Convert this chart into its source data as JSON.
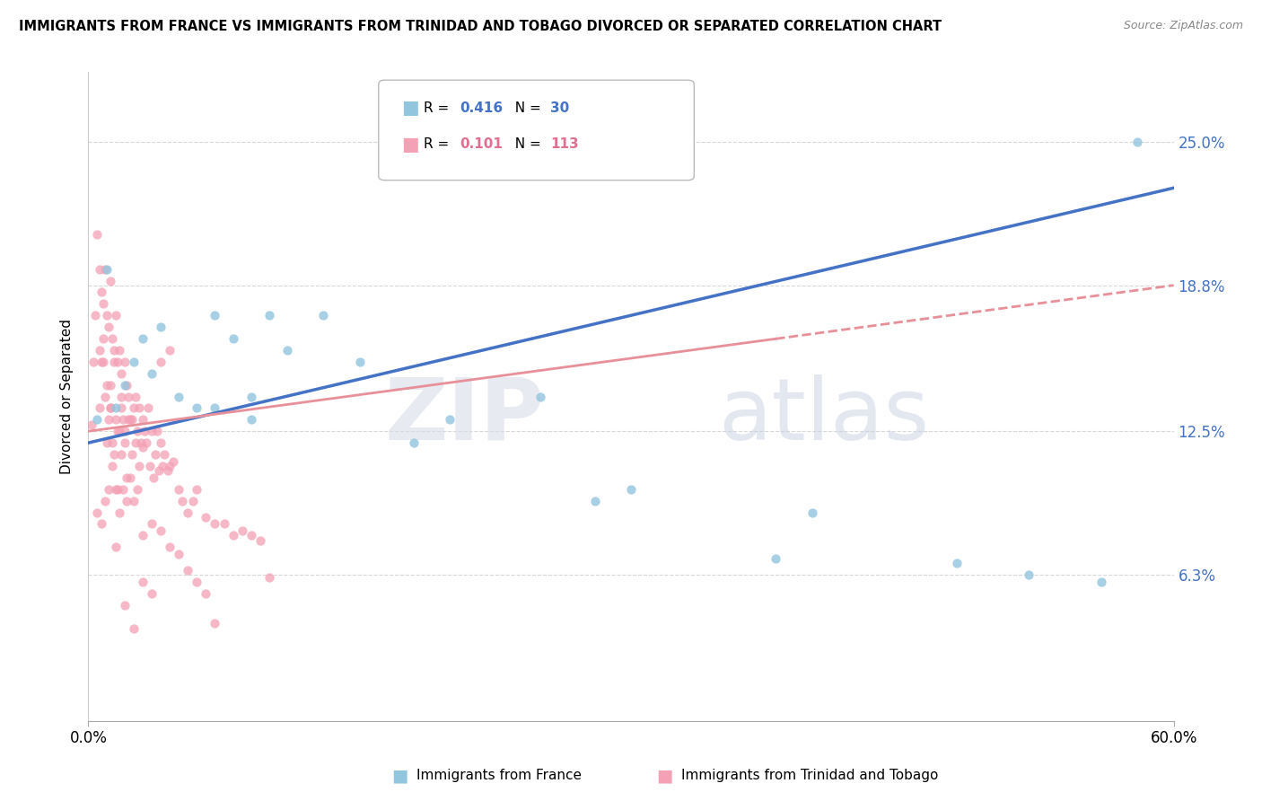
{
  "title": "IMMIGRANTS FROM FRANCE VS IMMIGRANTS FROM TRINIDAD AND TOBAGO DIVORCED OR SEPARATED CORRELATION CHART",
  "source": "Source: ZipAtlas.com",
  "ylabel": "Divorced or Separated",
  "ytick_labels": [
    "6.3%",
    "12.5%",
    "18.8%",
    "25.0%"
  ],
  "ytick_values": [
    0.063,
    0.125,
    0.188,
    0.25
  ],
  "xlim": [
    0.0,
    0.6
  ],
  "ylim": [
    0.0,
    0.28
  ],
  "legend_r1": "R = 0.416",
  "legend_n1": "N = 30",
  "legend_r2": "R = 0.101",
  "legend_n2": "N = 113",
  "color_france": "#92C5DE",
  "color_trinidad": "#F4A0B5",
  "color_trendline_france": "#4472C4",
  "color_trendline_trinidad": "#E8909A",
  "france_x": [
    0.005,
    0.01,
    0.015,
    0.02,
    0.025,
    0.03,
    0.035,
    0.04,
    0.05,
    0.06,
    0.07,
    0.08,
    0.09,
    0.1,
    0.11,
    0.13,
    0.15,
    0.2,
    0.25,
    0.28,
    0.3,
    0.38,
    0.4,
    0.48,
    0.52,
    0.56,
    0.58,
    0.07,
    0.09,
    0.18
  ],
  "france_y": [
    0.13,
    0.195,
    0.135,
    0.145,
    0.155,
    0.165,
    0.15,
    0.17,
    0.14,
    0.135,
    0.175,
    0.165,
    0.14,
    0.175,
    0.16,
    0.175,
    0.155,
    0.13,
    0.14,
    0.095,
    0.1,
    0.07,
    0.09,
    0.068,
    0.063,
    0.06,
    0.25,
    0.135,
    0.13,
    0.12
  ],
  "trinidad_x": [
    0.002,
    0.003,
    0.004,
    0.005,
    0.006,
    0.006,
    0.007,
    0.007,
    0.008,
    0.008,
    0.009,
    0.009,
    0.01,
    0.01,
    0.011,
    0.011,
    0.012,
    0.012,
    0.013,
    0.013,
    0.014,
    0.014,
    0.015,
    0.015,
    0.016,
    0.016,
    0.017,
    0.017,
    0.018,
    0.018,
    0.019,
    0.02,
    0.02,
    0.021,
    0.021,
    0.022,
    0.023,
    0.024,
    0.025,
    0.026,
    0.027,
    0.028,
    0.029,
    0.03,
    0.031,
    0.032,
    0.033,
    0.034,
    0.035,
    0.036,
    0.037,
    0.038,
    0.039,
    0.04,
    0.041,
    0.042,
    0.044,
    0.045,
    0.047,
    0.05,
    0.052,
    0.055,
    0.058,
    0.06,
    0.065,
    0.07,
    0.075,
    0.08,
    0.085,
    0.09,
    0.095,
    0.1,
    0.006,
    0.008,
    0.01,
    0.012,
    0.014,
    0.016,
    0.018,
    0.02,
    0.022,
    0.024,
    0.026,
    0.028,
    0.03,
    0.005,
    0.007,
    0.009,
    0.011,
    0.013,
    0.015,
    0.017,
    0.019,
    0.021,
    0.023,
    0.025,
    0.027,
    0.03,
    0.035,
    0.04,
    0.045,
    0.05,
    0.055,
    0.06,
    0.065,
    0.07,
    0.02,
    0.025,
    0.03,
    0.035,
    0.015,
    0.04,
    0.045,
    0.012,
    0.018
  ],
  "trinidad_y": [
    0.128,
    0.155,
    0.175,
    0.21,
    0.16,
    0.195,
    0.185,
    0.155,
    0.18,
    0.165,
    0.195,
    0.14,
    0.175,
    0.12,
    0.17,
    0.13,
    0.19,
    0.145,
    0.165,
    0.12,
    0.16,
    0.115,
    0.175,
    0.13,
    0.155,
    0.1,
    0.16,
    0.125,
    0.15,
    0.115,
    0.13,
    0.155,
    0.125,
    0.145,
    0.105,
    0.14,
    0.13,
    0.13,
    0.135,
    0.14,
    0.125,
    0.135,
    0.12,
    0.13,
    0.125,
    0.12,
    0.135,
    0.11,
    0.125,
    0.105,
    0.115,
    0.125,
    0.108,
    0.12,
    0.11,
    0.115,
    0.108,
    0.11,
    0.112,
    0.1,
    0.095,
    0.09,
    0.095,
    0.1,
    0.088,
    0.085,
    0.085,
    0.08,
    0.082,
    0.08,
    0.078,
    0.062,
    0.135,
    0.155,
    0.145,
    0.135,
    0.155,
    0.125,
    0.135,
    0.12,
    0.13,
    0.115,
    0.12,
    0.11,
    0.118,
    0.09,
    0.085,
    0.095,
    0.1,
    0.11,
    0.1,
    0.09,
    0.1,
    0.095,
    0.105,
    0.095,
    0.1,
    0.08,
    0.085,
    0.082,
    0.075,
    0.072,
    0.065,
    0.06,
    0.055,
    0.042,
    0.05,
    0.04,
    0.06,
    0.055,
    0.075,
    0.155,
    0.16,
    0.135,
    0.14
  ]
}
